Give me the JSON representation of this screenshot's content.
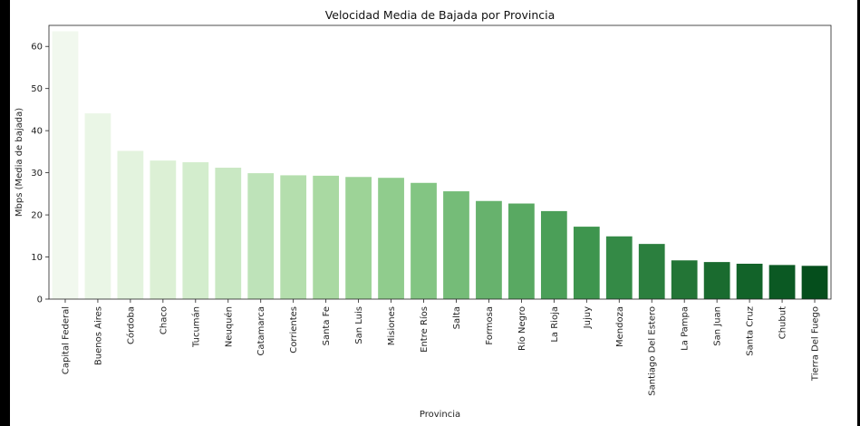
{
  "chart_data": {
    "type": "bar",
    "title": "Velocidad Media de Bajada por Provincia",
    "xlabel": "Provincia",
    "ylabel": "Mbps (Media de bajada)",
    "ylim": [
      0,
      65
    ],
    "yticks": [
      0,
      10,
      20,
      30,
      40,
      50,
      60
    ],
    "grid": false,
    "categories": [
      "Capital Federal",
      "Buenos Aires",
      "Córdoba",
      "Chaco",
      "Tucumán",
      "Neuquén",
      "Catamarca",
      "Corrientes",
      "Santa Fe",
      "San Luis",
      "Misiones",
      "Entre Ríos",
      "Salta",
      "Formosa",
      "Río Negro",
      "La Rioja",
      "Jujuy",
      "Mendoza",
      "Santiago Del Estero",
      "La Pampa",
      "San Juan",
      "Santa Cruz",
      "Chubut",
      "Tierra Del Fuego"
    ],
    "values": [
      63.6,
      44.1,
      35.2,
      32.9,
      32.5,
      31.2,
      29.9,
      29.4,
      29.3,
      29.0,
      28.8,
      27.6,
      25.6,
      23.3,
      22.7,
      20.9,
      17.2,
      14.9,
      13.1,
      9.2,
      8.8,
      8.4,
      8.1,
      7.9
    ],
    "colors": [
      "#f1f8ee",
      "#eaf6e6",
      "#e3f3de",
      "#dcf0d5",
      "#d3edcd",
      "#c9e8c3",
      "#bee3b9",
      "#b4dead",
      "#a9d9a2",
      "#9dd397",
      "#90cc8d",
      "#83c583",
      "#75bc78",
      "#67b26d",
      "#59a962",
      "#4b9f58",
      "#3e954e",
      "#348a46",
      "#2b7f3e",
      "#237536",
      "#1a6b2f",
      "#126329",
      "#0b5923",
      "#054e1c"
    ]
  }
}
